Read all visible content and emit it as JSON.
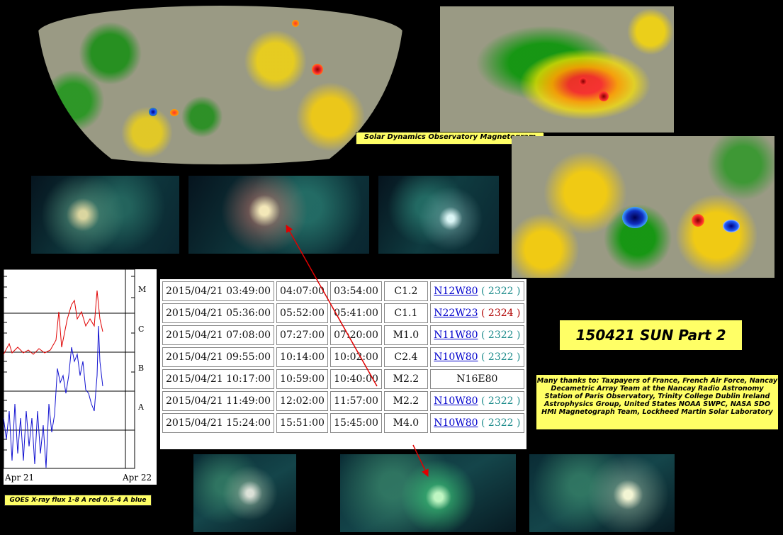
{
  "magnetogram_label": "Solar Dynamics Observatory Magnetogram",
  "goes_label": "GOES X-ray flux 1-8 A red 0.5-4 A blue",
  "goes_chart": {
    "class_labels": [
      "M",
      "C",
      "B",
      "A"
    ],
    "x_labels": [
      "Apr 21",
      "Apr 22"
    ]
  },
  "title": "150421 SUN Part 2",
  "thanks": "Many thanks to: Taxpayers of France, French Air Force, Nancay Decametric Array Team at the Nancay Radio Astronomy Station of Paris Observatory, Trinity College Dublin Ireland Astrophysics Group, United States NOAA SWPC, NASA SDO HMI Magnetograph Team, Lockheed Martin Solar Laboratory",
  "flares": [
    {
      "start": "2015/04/21 03:49:00",
      "end": "04:07:00",
      "peak": "03:54:00",
      "class": "C1.2",
      "loc": "N12W80",
      "region": "( 2322 )",
      "region_color": "teal",
      "linked": true
    },
    {
      "start": "2015/04/21 05:36:00",
      "end": "05:52:00",
      "peak": "05:41:00",
      "class": "C1.1",
      "loc": "N22W23",
      "region": "( 2324 )",
      "region_color": "red",
      "linked": true
    },
    {
      "start": "2015/04/21 07:08:00",
      "end": "07:27:00",
      "peak": "07:20:00",
      "class": "M1.0",
      "loc": "N11W80",
      "region": "( 2322 )",
      "region_color": "teal",
      "linked": true
    },
    {
      "start": "2015/04/21 09:55:00",
      "end": "10:14:00",
      "peak": "10:02:00",
      "class": "C2.4",
      "loc": "N10W80",
      "region": "( 2322 )",
      "region_color": "teal",
      "linked": true
    },
    {
      "start": "2015/04/21 10:17:00",
      "end": "10:59:00",
      "peak": "10:40:00",
      "class": "M2.2",
      "loc": "N16E80",
      "region": "",
      "region_color": "",
      "linked": false
    },
    {
      "start": "2015/04/21 11:49:00",
      "end": "12:02:00",
      "peak": "11:57:00",
      "class": "M2.2",
      "loc": "N10W80",
      "region": "( 2322 )",
      "region_color": "teal",
      "linked": true
    },
    {
      "start": "2015/04/21 15:24:00",
      "end": "15:51:00",
      "peak": "15:45:00",
      "class": "M4.0",
      "loc": "N10W80",
      "region": "( 2322 )",
      "region_color": "teal",
      "linked": true
    }
  ]
}
